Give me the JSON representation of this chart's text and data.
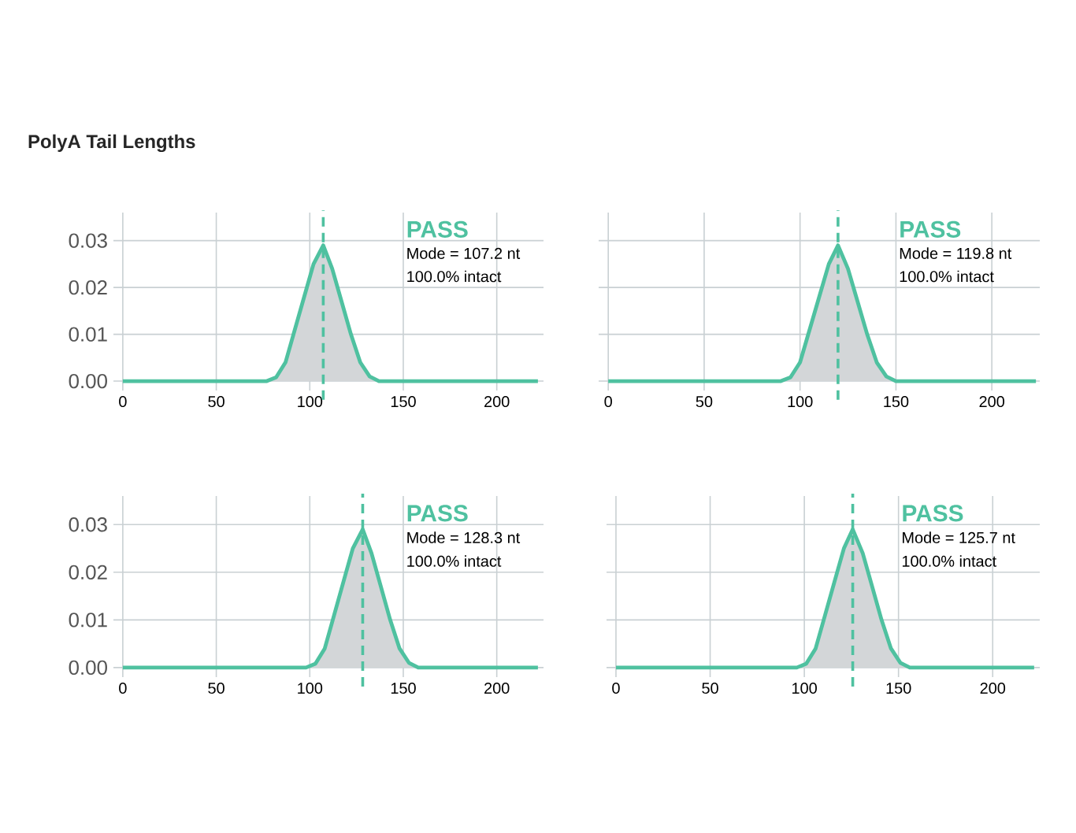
{
  "chart_data": [
    {
      "type": "area",
      "title": "PolyA Tail Lengths",
      "x": [
        0,
        77,
        82,
        87,
        92,
        97,
        102,
        107.2,
        112,
        117,
        122,
        127,
        132,
        137,
        222
      ],
      "series": [
        {
          "color": "#4fc1a0",
          "values": [
            0,
            0,
            0.0008,
            0.004,
            0.011,
            0.018,
            0.025,
            0.029,
            0.024,
            0.017,
            0.01,
            0.004,
            0.001,
            0,
            0
          ]
        }
      ],
      "xlim": [
        -5,
        225
      ],
      "ylim": [
        -0.002,
        0.036
      ],
      "xticks": [
        0,
        50,
        100,
        150,
        200
      ],
      "yticks": [
        {
          "value": 0,
          "label": "0.00"
        },
        {
          "value": 0.01,
          "label": "0.01"
        },
        {
          "value": 0.02,
          "label": "0.02"
        },
        {
          "value": 0.03,
          "label": "0.03"
        }
      ],
      "grid": true,
      "ref_lines": [
        {
          "axis": "x",
          "value": 107.2,
          "color": "#4fc1a0",
          "line_style": "dashed"
        }
      ],
      "annotations": [
        "PASS",
        "Mode = 107.2 nt",
        "100.0% intact"
      ]
    },
    {
      "type": "area",
      "x": [
        0,
        90,
        95,
        100,
        105,
        110,
        115,
        119.8,
        125,
        130,
        135,
        140,
        145,
        150,
        223
      ],
      "series": [
        {
          "color": "#4fc1a0",
          "values": [
            0,
            0,
            0.0008,
            0.004,
            0.011,
            0.018,
            0.025,
            0.029,
            0.024,
            0.017,
            0.01,
            0.004,
            0.001,
            0,
            0
          ]
        }
      ],
      "xlim": [
        -5,
        225
      ],
      "ylim": [
        -0.002,
        0.036
      ],
      "xticks": [
        0,
        50,
        100,
        150,
        200
      ],
      "yticks": [
        0,
        0.01,
        0.02,
        0.03
      ],
      "grid": true,
      "tick_labels": "x",
      "ref_lines": [
        {
          "axis": "x",
          "value": 119.8,
          "color": "#4fc1a0",
          "line_style": "dashed"
        }
      ],
      "annotations": [
        "PASS",
        "Mode = 119.8 nt",
        "100.0% intact"
      ]
    },
    {
      "type": "area",
      "x": [
        0,
        98,
        103,
        108,
        113,
        118,
        123,
        128.3,
        133,
        138,
        143,
        148,
        153,
        158,
        222
      ],
      "series": [
        {
          "color": "#4fc1a0",
          "values": [
            0,
            0,
            0.0008,
            0.004,
            0.011,
            0.018,
            0.025,
            0.029,
            0.024,
            0.017,
            0.01,
            0.004,
            0.001,
            0,
            0
          ]
        }
      ],
      "xlim": [
        -5,
        225
      ],
      "ylim": [
        -0.002,
        0.036
      ],
      "xticks": [
        0,
        50,
        100,
        150,
        200
      ],
      "yticks": [
        {
          "value": 0,
          "label": "0.00"
        },
        {
          "value": 0.01,
          "label": "0.01"
        },
        {
          "value": 0.02,
          "label": "0.02"
        },
        {
          "value": 0.03,
          "label": "0.03"
        }
      ],
      "grid": true,
      "ref_lines": [
        {
          "axis": "x",
          "value": 128.3,
          "color": "#4fc1a0",
          "line_style": "dashed"
        }
      ],
      "annotations": [
        "PASS",
        "Mode = 128.3 nt",
        "100.0% intact"
      ]
    },
    {
      "type": "area",
      "x": [
        0,
        96,
        101,
        106,
        111,
        116,
        121,
        125.7,
        131,
        136,
        141,
        146,
        151,
        156,
        222
      ],
      "series": [
        {
          "color": "#4fc1a0",
          "values": [
            0,
            0,
            0.0008,
            0.004,
            0.011,
            0.018,
            0.025,
            0.029,
            0.024,
            0.017,
            0.01,
            0.004,
            0.001,
            0,
            0
          ]
        }
      ],
      "xlim": [
        -5,
        225
      ],
      "ylim": [
        -0.002,
        0.036
      ],
      "xticks": [
        0,
        50,
        100,
        150,
        200
      ],
      "yticks": [
        0,
        0.01,
        0.02,
        0.03
      ],
      "grid": true,
      "tick_labels": "x",
      "ref_lines": [
        {
          "axis": "x",
          "value": 125.7,
          "color": "#4fc1a0",
          "line_style": "dashed"
        }
      ],
      "annotations": [
        "PASS",
        "Mode = 125.7 nt",
        "100.0% intact"
      ]
    }
  ]
}
